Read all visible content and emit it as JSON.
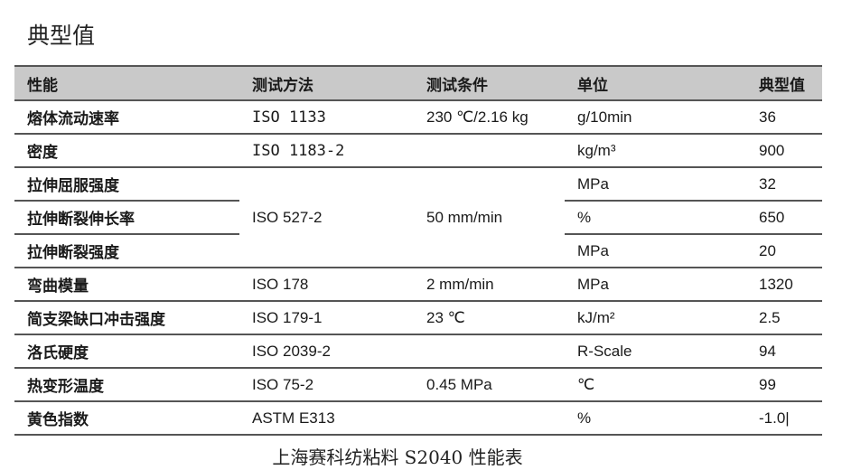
{
  "title": "典型值",
  "table": {
    "headers": [
      "性能",
      "测试方法",
      "测试条件",
      "单位",
      "典型值"
    ],
    "rows": [
      {
        "property": "熔体流动速率",
        "method": "ISO 1133",
        "condition": "230 ℃/2.16 kg",
        "unit": "g/10min",
        "value": "36"
      },
      {
        "property": "密度",
        "method": "ISO 1183-2",
        "condition": "",
        "unit": "kg/m³",
        "value": "900"
      },
      {
        "property": "拉伸屈服强度",
        "method": "ISO 527-2",
        "condition": "50 mm/min",
        "unit": "MPa",
        "value": "32"
      },
      {
        "property": "拉伸断裂伸长率",
        "unit": "%",
        "value": "650"
      },
      {
        "property": "拉伸断裂强度",
        "unit": "MPa",
        "value": "20"
      },
      {
        "property": "弯曲模量",
        "method": "ISO 178",
        "condition": "2 mm/min",
        "unit": "MPa",
        "value": "1320"
      },
      {
        "property": "简支梁缺口冲击强度",
        "method": "ISO 179-1",
        "condition": "23 ℃",
        "unit": "kJ/m²",
        "value": "2.5"
      },
      {
        "property": "洛氏硬度",
        "method": "ISO 2039-2",
        "condition": "",
        "unit": "R-Scale",
        "value": "94"
      },
      {
        "property": "热变形温度",
        "method": "ISO 75-2",
        "condition": "0.45 MPa",
        "unit": "℃",
        "value": "99"
      },
      {
        "property": "黄色指数",
        "method": "ASTM E313",
        "condition": "",
        "unit": "%",
        "value": "-1.0|"
      }
    ]
  },
  "caption": "上海赛科纺粘料 S2040 性能表"
}
